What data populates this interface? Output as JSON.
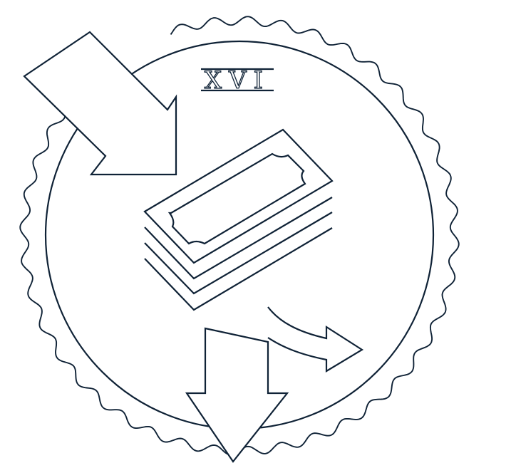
{
  "emblem": {
    "numeral": "XVI",
    "line_color": "#0f2236",
    "background_color": "#ffffff",
    "icons": [
      "scalloped-seal-icon",
      "inflow-arrow-icon",
      "money-stack-icon",
      "outflow-arrow-icon",
      "curved-redirect-arrow-icon"
    ]
  }
}
